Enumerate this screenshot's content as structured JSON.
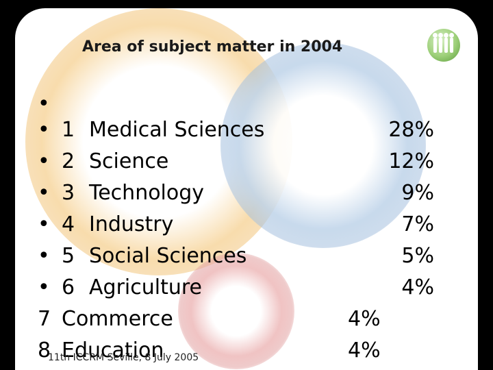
{
  "title": "Area of subject matter in 2004",
  "empty_bullet": "•",
  "items": [
    {
      "marker": "•",
      "num": "1",
      "label": "Medical Sciences",
      "pct": "28%"
    },
    {
      "marker": "•",
      "num": "2",
      "label": "Science",
      "pct": "12%"
    },
    {
      "marker": "•",
      "num": "3",
      "label": "Technology",
      "pct": "9%"
    },
    {
      "marker": "•",
      "num": "4",
      "label": "Industry",
      "pct": "7%"
    },
    {
      "marker": "•",
      "num": "5",
      "label": "Social Sciences",
      "pct": "5%"
    },
    {
      "marker": "•",
      "num": "6",
      "label": "Agriculture",
      "pct": "4%"
    },
    {
      "marker": "7",
      "label": "Commerce",
      "pct": "4%"
    },
    {
      "marker": "8",
      "label": "Education",
      "pct": "4%"
    }
  ],
  "footer": "11th ICCRM Seville, 8 July 2005",
  "logo": {
    "icon": "people-logo-icon",
    "color": "#7bb55a"
  }
}
